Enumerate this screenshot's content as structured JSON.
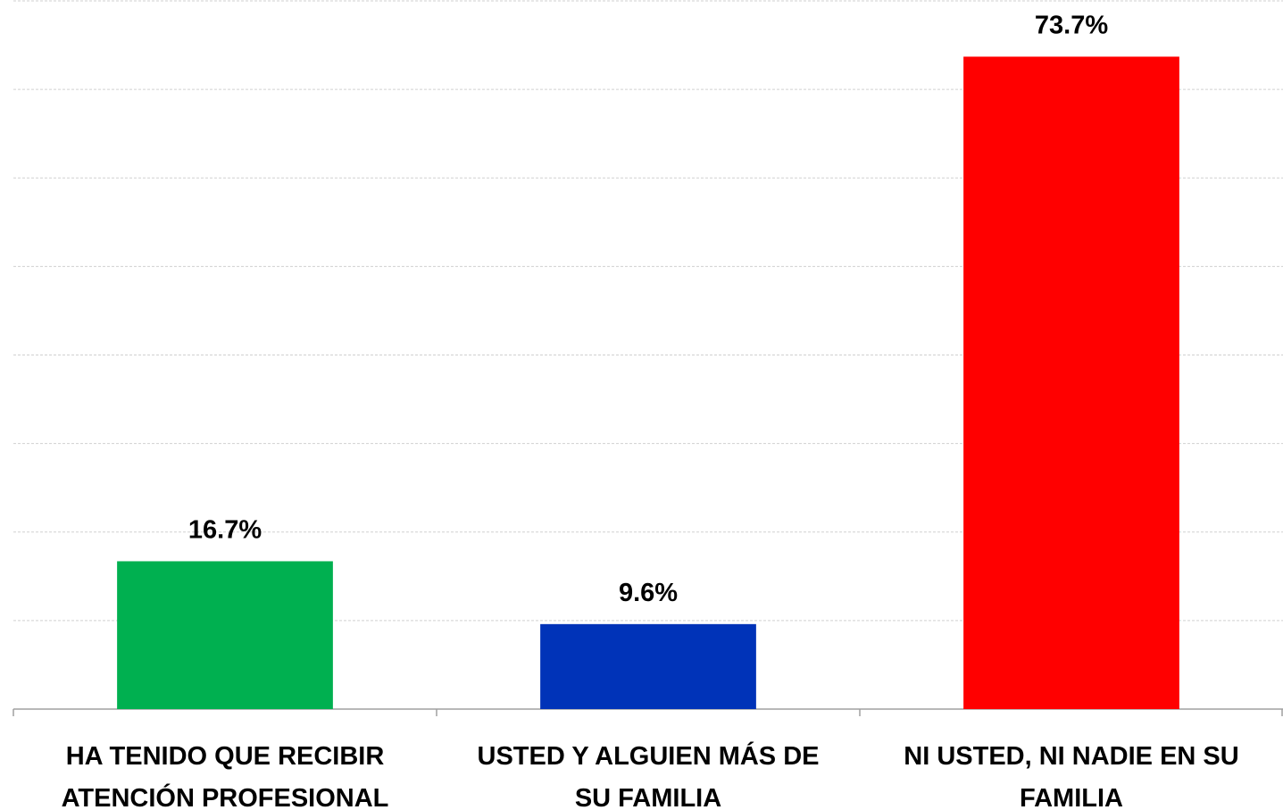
{
  "chart_data": {
    "type": "bar",
    "categories": [
      [
        "HA TENIDO QUE RECIBIR",
        "ATENCIÓN PROFESIONAL"
      ],
      [
        "USTED Y ALGUIEN MÁS DE",
        "SU FAMILIA"
      ],
      [
        "NI USTED, NI NADIE EN SU",
        "FAMILIA"
      ]
    ],
    "values": [
      16.7,
      9.6,
      73.7
    ],
    "value_labels": [
      "16.7%",
      "9.6%",
      "73.7%"
    ],
    "colors": [
      "#00b050",
      "#0033b8",
      "#ff0000"
    ],
    "ylim": [
      0,
      80
    ],
    "yticks": [
      0,
      10,
      20,
      30,
      40,
      50,
      60,
      70,
      80
    ],
    "grid": true
  }
}
